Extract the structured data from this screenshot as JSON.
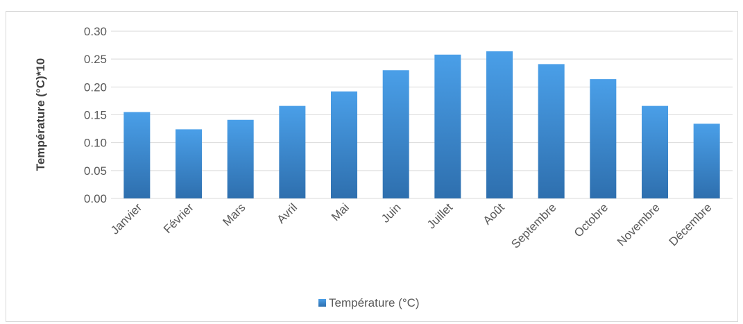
{
  "chart_data": {
    "type": "bar",
    "title": "",
    "xlabel": "",
    "ylabel": "Température (°C)*10",
    "categories": [
      "Janvier",
      "Février",
      "Mars",
      "Avril",
      "Mai",
      "Juin",
      "Juillet",
      "Août",
      "Septembre",
      "Octobre",
      "Novembre",
      "Décembre"
    ],
    "series": [
      {
        "name": "Température (°C)",
        "values": [
          0.155,
          0.124,
          0.141,
          0.166,
          0.192,
          0.23,
          0.258,
          0.264,
          0.241,
          0.214,
          0.166,
          0.134
        ]
      }
    ],
    "ylim": [
      0,
      0.3
    ],
    "yticks": [
      "0.00",
      "0.05",
      "0.10",
      "0.15",
      "0.20",
      "0.25",
      "0.30"
    ],
    "grid": true,
    "legend_position": "bottom",
    "colors": {
      "bar_top": "#4a9fe8",
      "bar_bottom": "#2e6fae",
      "grid": "#d9d9d9"
    }
  }
}
